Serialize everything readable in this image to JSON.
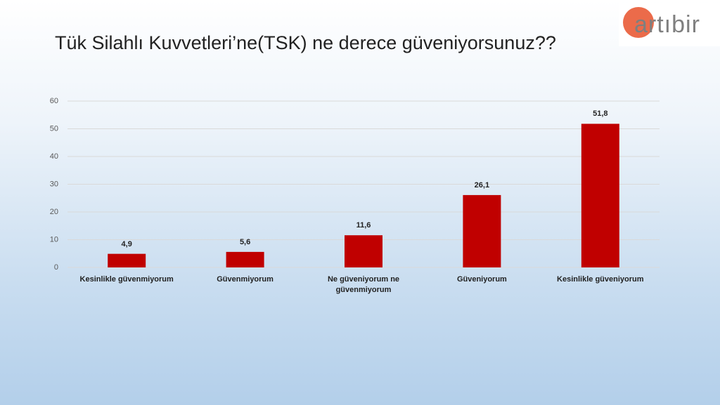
{
  "logo": "artıbir",
  "chart_data": {
    "type": "bar",
    "title": "Tük Silahlı Kuvvetleri’ne(TSK) ne derece güveniyorsunuz??",
    "categories": [
      "Kesinlikle güvenmiyorum",
      "Güvenmiyorum",
      "Ne güveniyorum ne güvenmiyorum",
      "Güveniyorum",
      "Kesinlikle güveniyorum"
    ],
    "values": [
      4.9,
      5.6,
      11.6,
      26.1,
      51.8
    ],
    "value_labels": [
      "4,9",
      "5,6",
      "11,6",
      "26,1",
      "51,8"
    ],
    "color": "#c00000",
    "ylim": [
      0,
      60
    ],
    "yticks": [
      0,
      10,
      20,
      30,
      40,
      50,
      60
    ],
    "grid": true
  }
}
